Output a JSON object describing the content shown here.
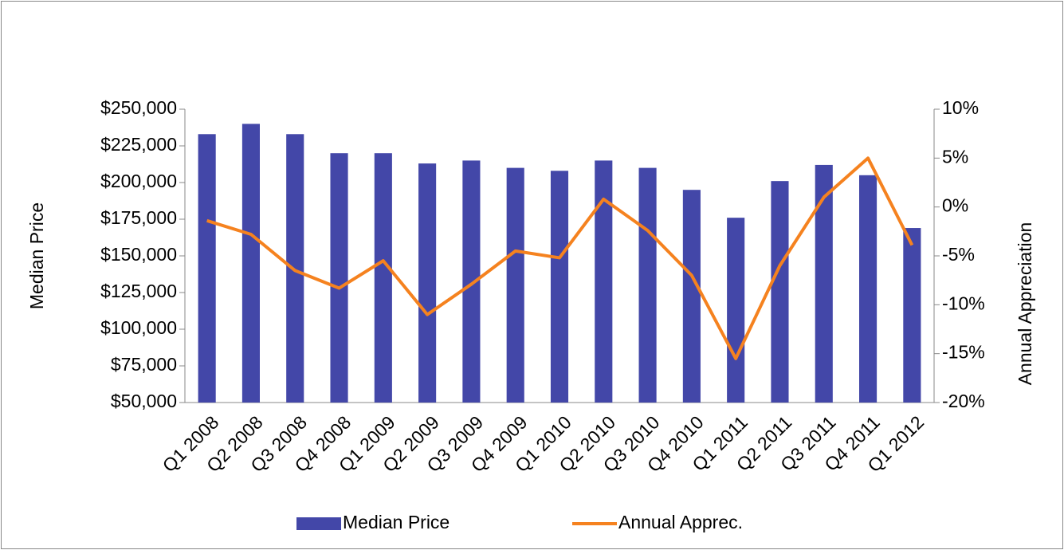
{
  "chart_data": {
    "type": "combo",
    "categories": [
      "Q1 2008",
      "Q2 2008",
      "Q3 2008",
      "Q4 2008",
      "Q1 2009",
      "Q2 2009",
      "Q3 2009",
      "Q4 2009",
      "Q1 2010",
      "Q2 2010",
      "Q3 2010",
      "Q4 2010",
      "Q1 2011",
      "Q2 2011",
      "Q3 2011",
      "Q4 2011",
      "Q1 2012"
    ],
    "ylabel": "Median Price",
    "y2label": "Annual Appreciation",
    "ylim": [
      50000,
      250000
    ],
    "yticks": [
      {
        "value": 50000,
        "label": "$50,000"
      },
      {
        "value": 75000,
        "label": "$75,000"
      },
      {
        "value": 100000,
        "label": "$100,000"
      },
      {
        "value": 125000,
        "label": "$125,000"
      },
      {
        "value": 150000,
        "label": "$150,000"
      },
      {
        "value": 175000,
        "label": "$175,000"
      },
      {
        "value": 200000,
        "label": "$200,000"
      },
      {
        "value": 225000,
        "label": "$225,000"
      },
      {
        "value": 250000,
        "label": "$250,000"
      }
    ],
    "y2lim": [
      -20,
      10
    ],
    "y2ticks": [
      {
        "value": -20,
        "label": "-20%"
      },
      {
        "value": -15,
        "label": "-15%"
      },
      {
        "value": -10,
        "label": "-10%"
      },
      {
        "value": -5,
        "label": "-5%"
      },
      {
        "value": 0,
        "label": "0%"
      },
      {
        "value": 5,
        "label": "5%"
      },
      {
        "value": 10,
        "label": "10%"
      }
    ],
    "legend": "bottom",
    "series": [
      {
        "name": "Median Price",
        "type": "bar",
        "color": "#4347a8",
        "values": [
          233000,
          240000,
          233000,
          220000,
          220000,
          213000,
          215000,
          210000,
          208000,
          215000,
          210000,
          195000,
          176000,
          201000,
          212000,
          205000,
          169000
        ]
      },
      {
        "name": "Annual Apprec.",
        "type": "line",
        "axis": "y2",
        "color": "#f5821f",
        "values": [
          -1.4,
          -2.8,
          -6.5,
          -8.3,
          -5.5,
          -11.0,
          -7.9,
          -4.5,
          -5.2,
          0.8,
          -2.4,
          -7.0,
          -15.5,
          -6.0,
          1.0,
          5.0,
          -3.9
        ]
      }
    ]
  }
}
